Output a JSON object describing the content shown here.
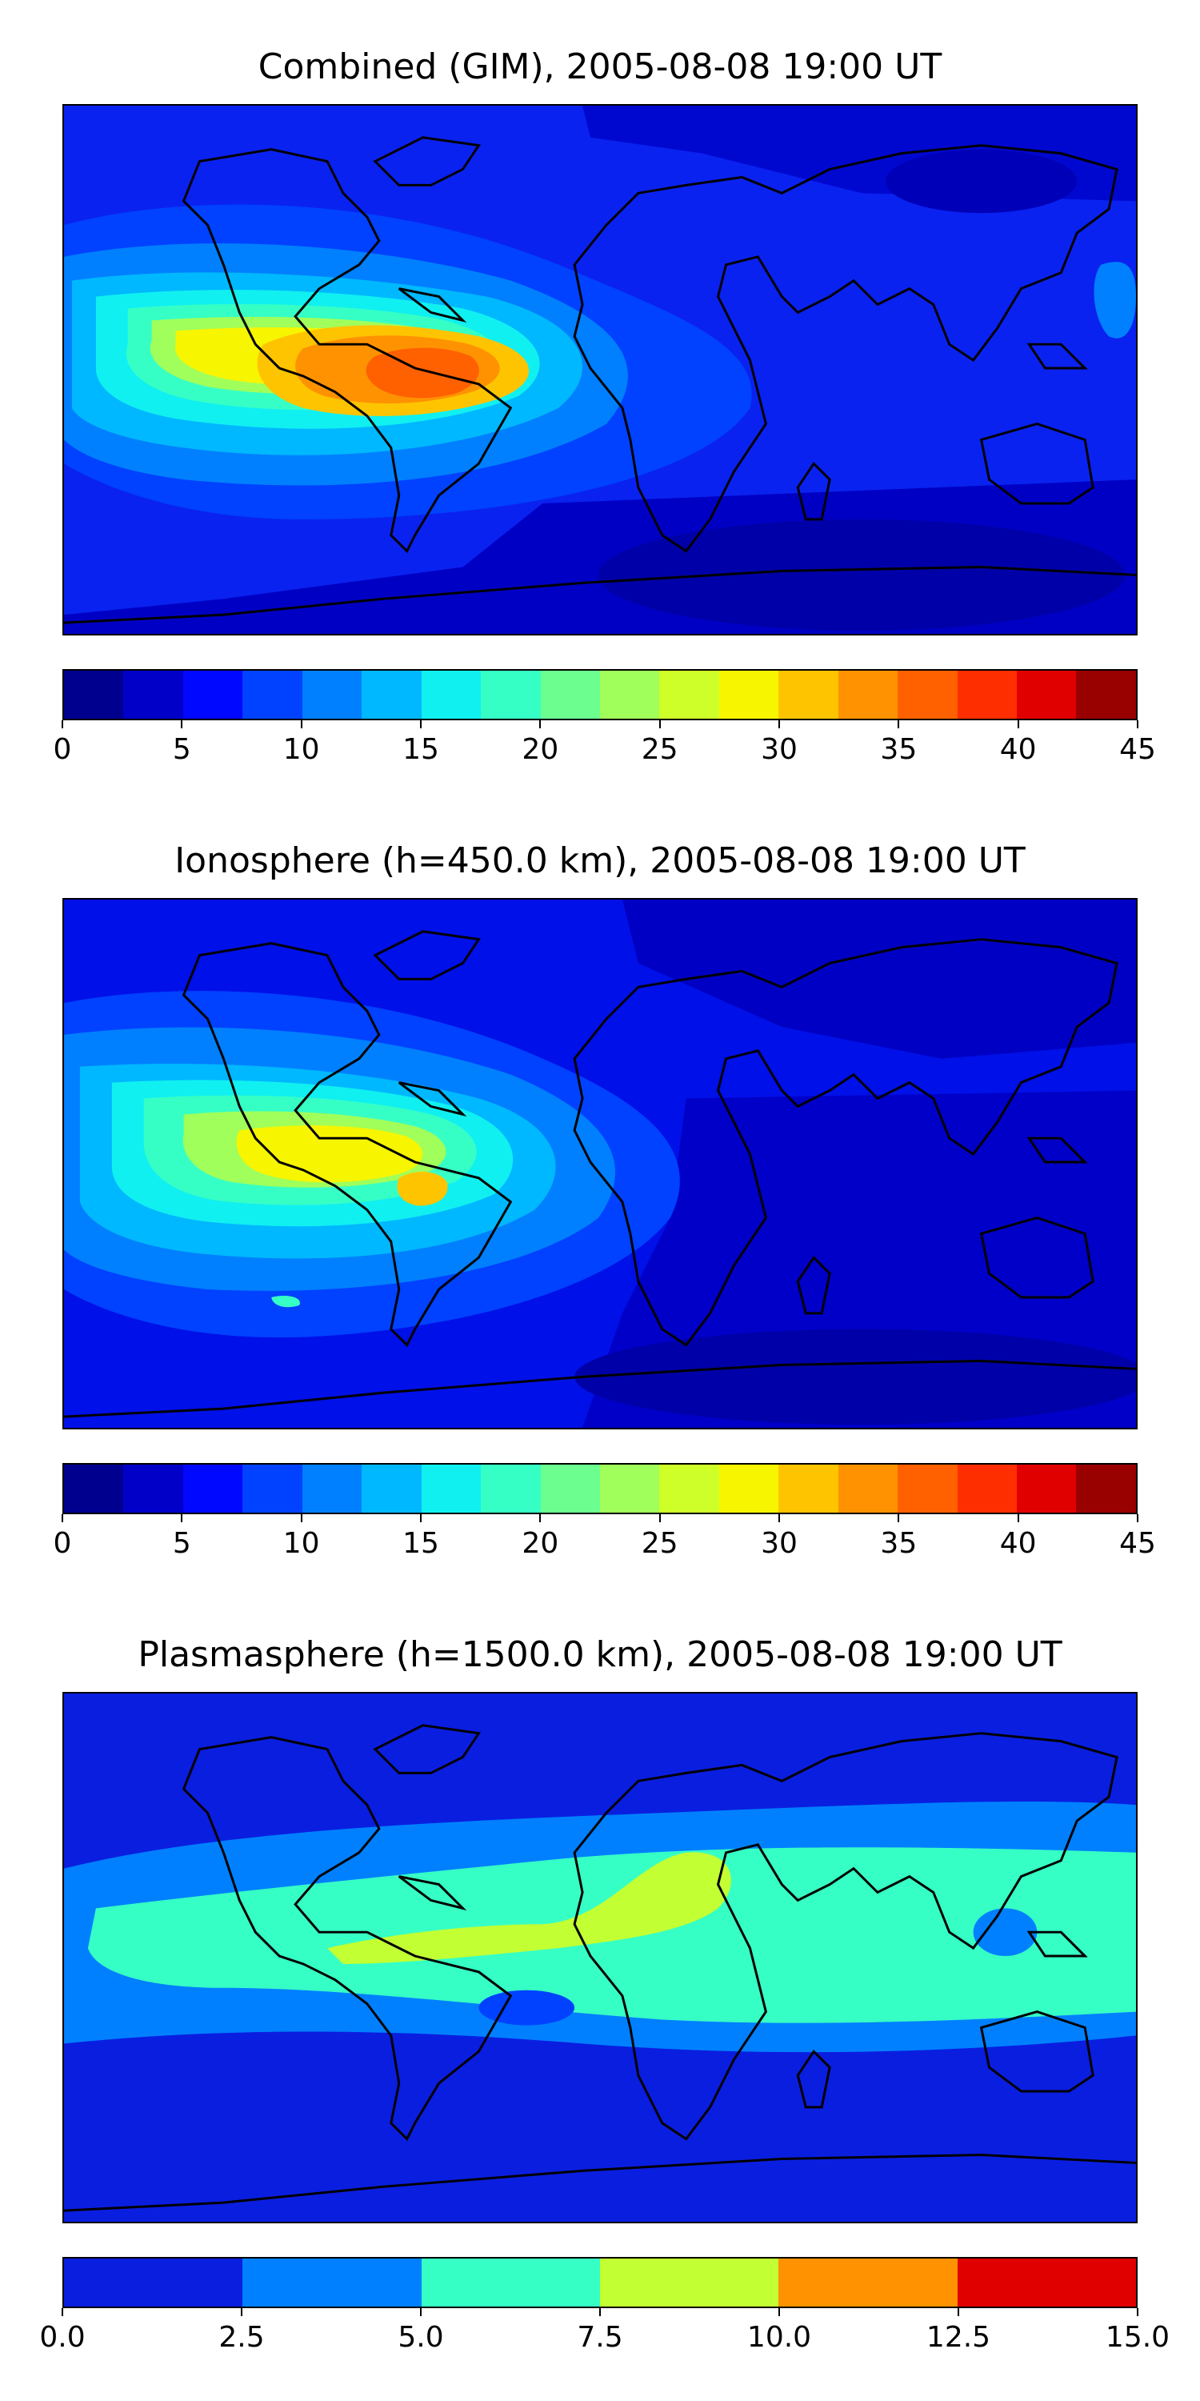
{
  "panels": [
    {
      "title": "Combined (GIM), 2005-08-08 19:00 UT",
      "colorbar": {
        "colors": [
          "#00008f",
          "#0000c8",
          "#0008ff",
          "#0042ff",
          "#0080ff",
          "#00b8ff",
          "#10f0f0",
          "#36ffc5",
          "#6cff8f",
          "#a0ff5a",
          "#cfff28",
          "#f7f500",
          "#ffc400",
          "#ff9200",
          "#ff6000",
          "#ff2e00",
          "#e00000",
          "#990000"
        ],
        "tick_labels": [
          "0",
          "5",
          "10",
          "15",
          "20",
          "25",
          "30",
          "35",
          "40",
          "45"
        ]
      }
    },
    {
      "title": "Ionosphere  (h=450.0 km), 2005-08-08 19:00 UT",
      "colorbar": {
        "colors": [
          "#00008f",
          "#0000c8",
          "#0008ff",
          "#0042ff",
          "#0080ff",
          "#00b8ff",
          "#10f0f0",
          "#36ffc5",
          "#6cff8f",
          "#a0ff5a",
          "#cfff28",
          "#f7f500",
          "#ffc400",
          "#ff9200",
          "#ff6000",
          "#ff2e00",
          "#e00000",
          "#990000"
        ],
        "tick_labels": [
          "0",
          "5",
          "10",
          "15",
          "20",
          "25",
          "30",
          "35",
          "40",
          "45"
        ]
      }
    },
    {
      "title": "Plasmasphere (h=1500.0 km), 2005-08-08 19:00 UT",
      "colorbar": {
        "colors": [
          "#0a1ee0",
          "#0080ff",
          "#36ffc5",
          "#c2ff33",
          "#ff9200",
          "#e00000"
        ],
        "tick_labels": [
          "0.0",
          "2.5",
          "5.0",
          "7.5",
          "10.0",
          "12.5",
          "15.0"
        ]
      }
    }
  ]
}
